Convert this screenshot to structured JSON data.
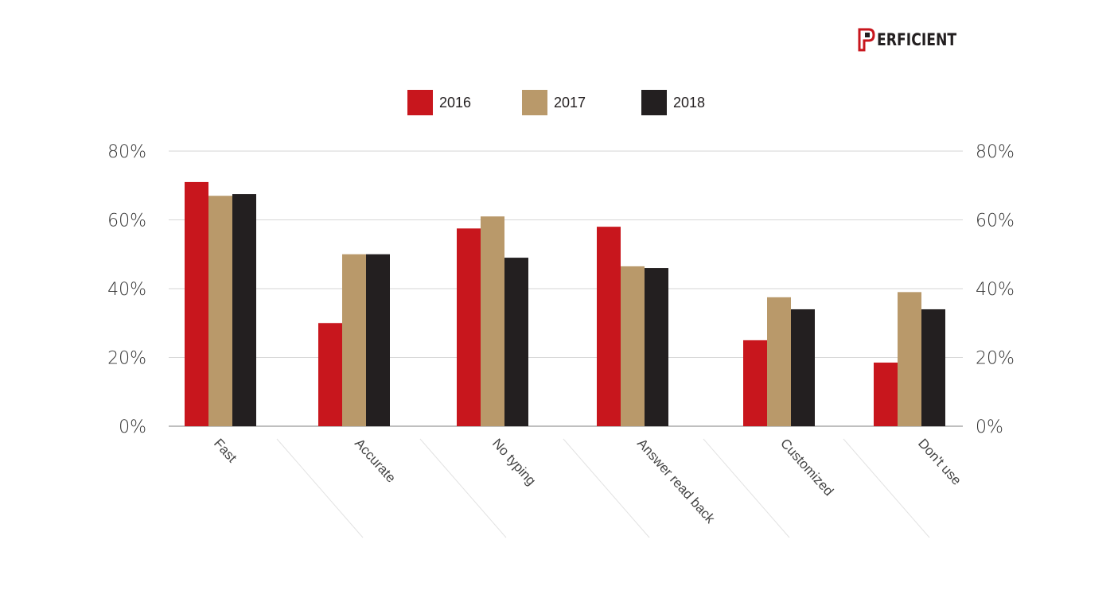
{
  "logo": {
    "text": "ERFICIENT",
    "brand_color": "#c8161d"
  },
  "chart_data": {
    "type": "bar",
    "categories": [
      "Fast",
      "Accurate",
      "No typing",
      "Answer read back",
      "Customized",
      "Don't use"
    ],
    "series": [
      {
        "name": "2016",
        "color": "#c8161d",
        "values": [
          71,
          30,
          57.5,
          58,
          25,
          18.5
        ]
      },
      {
        "name": "2017",
        "color": "#b9996a",
        "values": [
          67,
          50,
          61,
          46.5,
          37.5,
          39
        ]
      },
      {
        "name": "2018",
        "color": "#231f20",
        "values": [
          67.5,
          50,
          49,
          46,
          34,
          34
        ]
      }
    ],
    "ylim": [
      0,
      80
    ],
    "yticks": [
      0,
      20,
      40,
      60,
      80
    ],
    "ytick_labels": [
      "0%",
      "20%",
      "40%",
      "60%",
      "80%"
    ],
    "grid": true,
    "legend": "top-center",
    "secondary_axis": true
  }
}
